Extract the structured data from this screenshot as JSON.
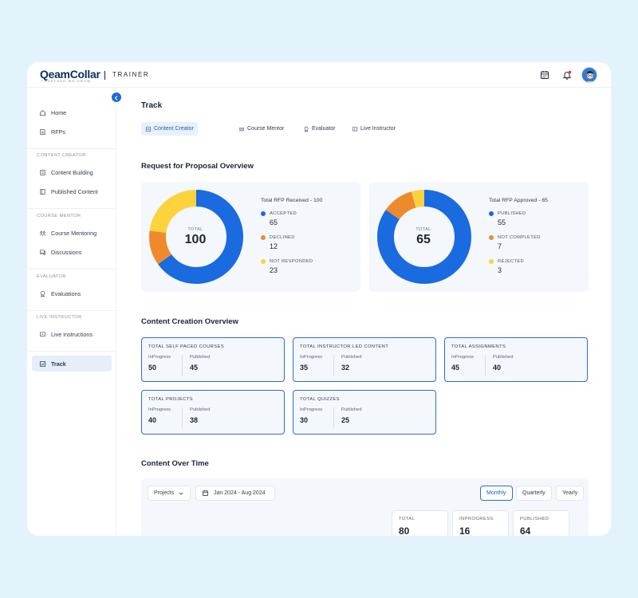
{
  "app": {
    "logo_text": "QeamCollar",
    "logo_tagline": "TOGETHER WE GROW",
    "role": "TRAINER"
  },
  "sidebar": {
    "items_top": [
      {
        "label": "Home",
        "icon": "home-icon"
      },
      {
        "label": "RFPs",
        "icon": "rfp-icon"
      }
    ],
    "sections": [
      {
        "title": "CONTENT CREATOR",
        "items": [
          {
            "label": "Content Building",
            "icon": "content-building-icon"
          },
          {
            "label": "Published Content",
            "icon": "published-content-icon"
          }
        ]
      },
      {
        "title": "COURSE MENTOR",
        "items": [
          {
            "label": "Course Mentoring",
            "icon": "mentoring-icon"
          },
          {
            "label": "Discussions",
            "icon": "discussions-icon"
          }
        ]
      },
      {
        "title": "EVALUATOR",
        "items": [
          {
            "label": "Evaluations",
            "icon": "evaluations-icon"
          }
        ]
      },
      {
        "title": "LIVE INSTRUCTOR",
        "items": [
          {
            "label": "Live Instructions",
            "icon": "live-instructions-icon"
          }
        ]
      }
    ],
    "active_item": {
      "label": "Track",
      "icon": "track-icon"
    }
  },
  "page": {
    "title": "Track",
    "tabs": [
      {
        "label": "Content Creator",
        "active": true
      },
      {
        "label": "Course Mentor",
        "active": false
      },
      {
        "label": "Evaluator",
        "active": false
      },
      {
        "label": "Live Instructor",
        "active": false
      }
    ]
  },
  "rfp_overview": {
    "title": "Request for Proposal Overview",
    "received": {
      "legend_title": "Total RFP Received - 100",
      "total_label": "TOTAL",
      "total_value": "100",
      "items": [
        {
          "name": "ACCEPTED",
          "value": 65,
          "color": "#1a6ae0"
        },
        {
          "name": "DECLINED",
          "value": 12,
          "color": "#ef8a2c"
        },
        {
          "name": "NOT RESPONDED",
          "value": 23,
          "color": "#fbd33c"
        }
      ]
    },
    "approved": {
      "legend_title": "Total RFP Approved - 65",
      "total_label": "TOTAL",
      "total_value": "65",
      "items": [
        {
          "name": "PUBLISHED",
          "value": 55,
          "color": "#1a6ae0"
        },
        {
          "name": "NOT COMPLETED",
          "value": 7,
          "color": "#ef8a2c"
        },
        {
          "name": "REJECTED",
          "value": 3,
          "color": "#fbd33c"
        }
      ]
    }
  },
  "content_creation": {
    "title": "Content Creation Overview",
    "inprogress_label": "InProgress",
    "published_label": "Published",
    "cards": [
      {
        "title": "TOTAL SELF PACED COURSES",
        "inprogress": "50",
        "published": "45"
      },
      {
        "title": "TOTAL INSTRUCTOR LED CONTENT",
        "inprogress": "35",
        "published": "32"
      },
      {
        "title": "TOTAL ASSIGNMENTS",
        "inprogress": "45",
        "published": "40"
      },
      {
        "title": "TOTAL PROJECTS",
        "inprogress": "40",
        "published": "38"
      },
      {
        "title": "TOTAL QUIZZES",
        "inprogress": "30",
        "published": "25"
      }
    ]
  },
  "content_over_time": {
    "title": "Content Over Time",
    "type_select": "Projects",
    "date_range": "Jan 2024 - Aug 2024",
    "periods": [
      {
        "label": "Monthly",
        "active": true
      },
      {
        "label": "Quarterly",
        "active": false
      },
      {
        "label": "Yearly",
        "active": false
      }
    ],
    "totals": [
      {
        "label": "TOTAL",
        "value": "80"
      },
      {
        "label": "INPROGRESS",
        "value": "16"
      },
      {
        "label": "PUBLISHED",
        "value": "64"
      }
    ]
  }
}
